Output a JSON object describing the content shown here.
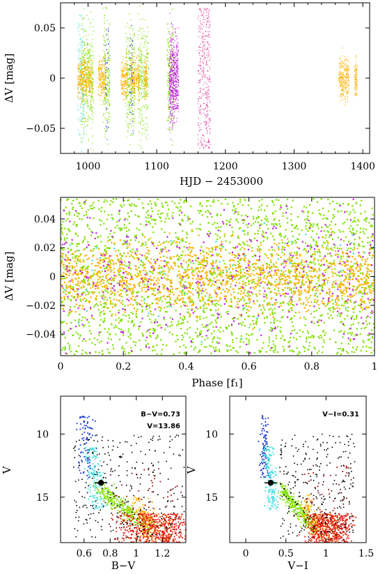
{
  "colors": {
    "green": "#7fe000",
    "orange": "#ffb000",
    "magenta": "#c020e0",
    "pink": "#e040a0",
    "cyan": "#40e0e0",
    "blue": "#1030d0",
    "black": "#000000",
    "red": "#e02010",
    "darkred": "#a01010",
    "darkorange": "#ff6000"
  },
  "chart_data": [
    {
      "type": "scatter",
      "xlabel": "HJD − 2453000",
      "ylabel": "ΔV [mag]",
      "xlim": [
        960,
        1410
      ],
      "ylim": [
        0.075,
        -0.075
      ],
      "xticks": [
        "1000",
        "1100",
        "1200",
        "1300",
        "1400"
      ],
      "yticks": [
        "−0.05",
        "0",
        "0.05"
      ],
      "series": [
        {
          "color": "cyan",
          "segments": [
            [
              985,
              995
            ]
          ]
        },
        {
          "color": "green",
          "segments": [
            [
              990,
              1008
            ],
            [
              1022,
              1032
            ],
            [
              1055,
              1068
            ],
            [
              1073,
              1088
            ],
            [
              1115,
              1125
            ]
          ]
        },
        {
          "color": "orange",
          "segments": [
            [
              985,
              1006
            ],
            [
              1015,
              1026
            ],
            [
              1048,
              1058
            ],
            [
              1062,
              1075
            ],
            [
              1082,
              1086
            ],
            [
              1365,
              1380
            ],
            [
              1388,
              1392
            ]
          ]
        },
        {
          "color": "magenta",
          "segments": [
            [
              1118,
              1132
            ]
          ]
        },
        {
          "color": "pink",
          "segments": [
            [
              1160,
              1178
            ]
          ]
        },
        {
          "color": "blue",
          "segments": [
            [
              1025,
              1030
            ],
            [
              1060,
              1066
            ]
          ]
        }
      ]
    },
    {
      "type": "scatter",
      "xlabel": "Phase [f₁]",
      "ylabel": "ΔV [mag]",
      "xlim": [
        0,
        1
      ],
      "ylim": [
        0.055,
        -0.055
      ],
      "xticks": [
        "0",
        "0.2",
        "0.4",
        "0.6",
        "0.8",
        "1"
      ],
      "yticks": [
        "−0.04",
        "−0.02",
        "0",
        "0.02",
        "0.04"
      ],
      "series": [
        {
          "color": "green",
          "spread": 0.03
        },
        {
          "color": "orange",
          "spread": 0.012
        },
        {
          "color": "magenta",
          "spread": 0.025
        },
        {
          "color": "cyan",
          "spread": 0.02
        }
      ]
    },
    {
      "type": "scatter",
      "xlabel": "B−V",
      "ylabel": "V",
      "xlim": [
        0.42,
        1.38
      ],
      "ylim": [
        7,
        18.6
      ],
      "xticks": [
        "0.6",
        "0.8",
        "1",
        "1.2"
      ],
      "yticks": [
        "10",
        "15"
      ],
      "annotation": [
        "B−V=0.73",
        "V=13.86"
      ],
      "target": {
        "x": 0.73,
        "y": 13.86
      }
    },
    {
      "type": "scatter",
      "xlabel": "V−I",
      "ylabel": "V",
      "xlim": [
        -0.2,
        1.5
      ],
      "ylim": [
        7,
        18.6
      ],
      "xticks": [
        "0",
        "0.5",
        "1",
        "1.5"
      ],
      "yticks": [
        "10",
        "15"
      ],
      "annotation": [
        "V−I=0.31"
      ],
      "target": {
        "x": 0.31,
        "y": 13.86
      }
    }
  ]
}
